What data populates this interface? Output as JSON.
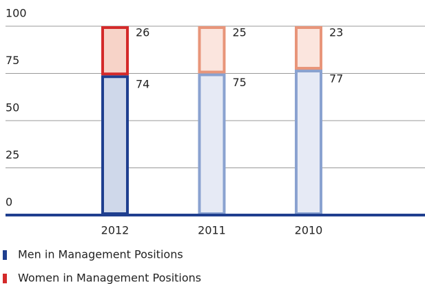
{
  "chart_data": {
    "type": "stacked_bar",
    "categories": [
      "2012",
      "2011",
      "2010"
    ],
    "series": [
      {
        "name": "Men in Management Positions",
        "color": "#1f3f8f",
        "stroke_colors": [
          "#1f3f8f",
          "#8aa2d0",
          "#8aa2d0"
        ],
        "fill_colors": [
          "#cfd8ea",
          "#e6eaf5",
          "#e6eaf5"
        ],
        "values": [
          74,
          75,
          77
        ]
      },
      {
        "name": "Women in Management Positions",
        "color": "#d42a2a",
        "stroke_colors": [
          "#d42a2a",
          "#e8957a",
          "#e8957a"
        ],
        "fill_colors": [
          "#f7d3c8",
          "#fbe5de",
          "#fbe5de"
        ],
        "values": [
          26,
          25,
          23
        ]
      }
    ],
    "ylim": [
      0,
      100
    ],
    "yticks": [
      0,
      25,
      50,
      75,
      100
    ],
    "grid": true
  }
}
